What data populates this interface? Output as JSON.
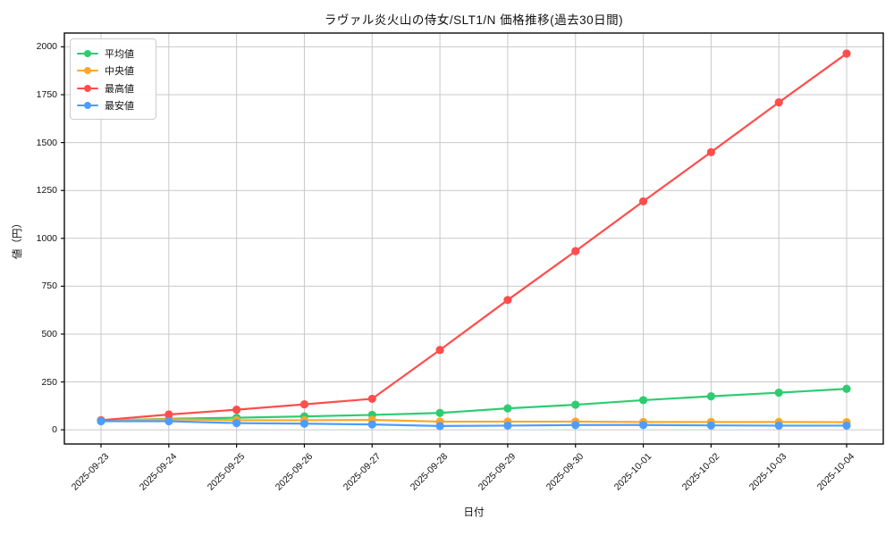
{
  "chart_data": {
    "type": "line",
    "title": "ラヴァル炎火山の侍女/SLT1/N 価格推移(過去30日間)",
    "xlabel": "日付",
    "ylabel": "値（円）",
    "categories": [
      "2025-09-23",
      "2025-09-24",
      "2025-09-25",
      "2025-09-26",
      "2025-09-27",
      "2025-09-28",
      "2025-09-29",
      "2025-09-30",
      "2025-10-01",
      "2025-10-02",
      "2025-10-03",
      "2025-10-04"
    ],
    "yticks": [
      0,
      250,
      500,
      750,
      1000,
      1250,
      1500,
      1750,
      2000
    ],
    "ylim": [
      -74,
      2072
    ],
    "grid": true,
    "legend_position": "upper-left",
    "series": [
      {
        "name": "平均値",
        "color": "#2ecc71",
        "values": [
          48,
          58,
          63,
          70,
          78,
          88,
          112,
          131,
          155,
          175,
          194,
          214
        ]
      },
      {
        "name": "中央値",
        "color": "#ffa726",
        "values": [
          48,
          55,
          50,
          50,
          52,
          43,
          43,
          43,
          41,
          41,
          41,
          40
        ]
      },
      {
        "name": "最高値",
        "color": "#ff4d4d",
        "values": [
          50,
          80,
          105,
          133,
          162,
          417,
          678,
          933,
          1193,
          1450,
          1710,
          1965
        ]
      },
      {
        "name": "最安値",
        "color": "#4a9eff",
        "values": [
          45,
          45,
          35,
          32,
          28,
          20,
          22,
          25,
          25,
          23,
          22,
          22
        ]
      }
    ],
    "colors": {
      "grid": "#c9c9c9",
      "spine": "#0a0a0a",
      "text": "#111111"
    }
  }
}
